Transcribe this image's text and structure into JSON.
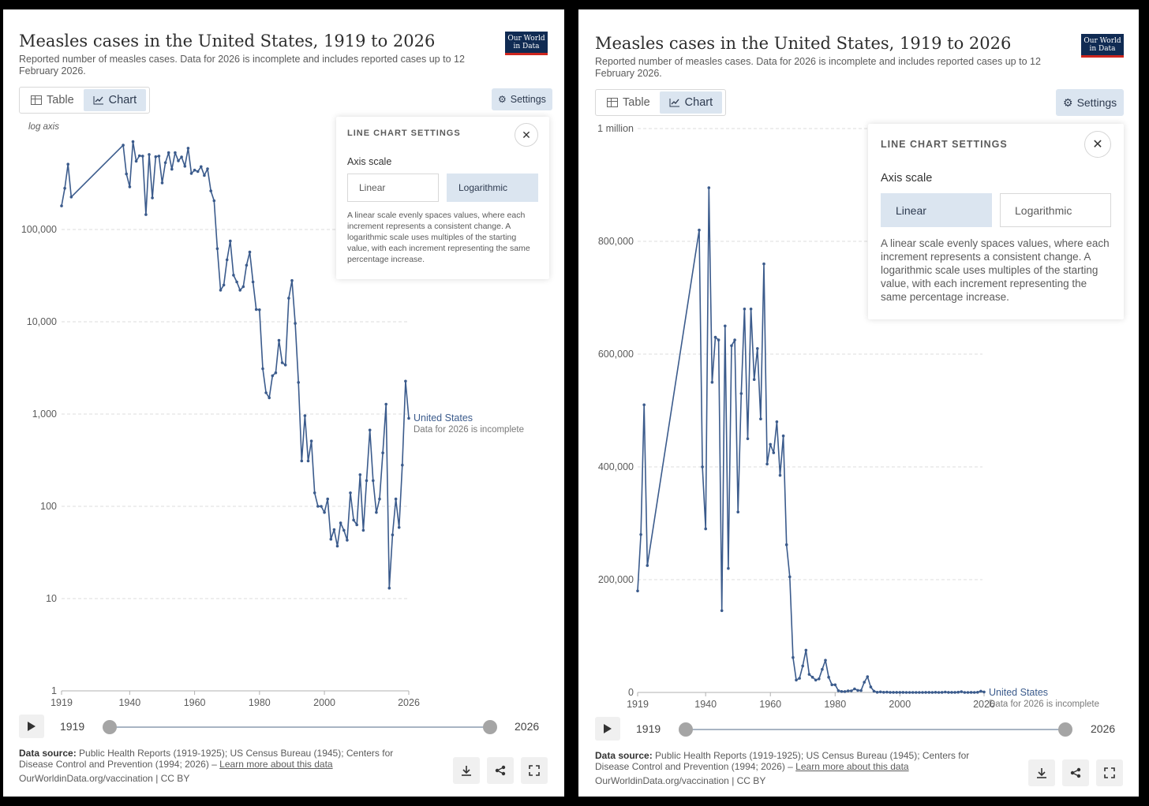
{
  "title": "Measles cases in the United States, 1919 to 2026",
  "subtitle": "Reported number of measles cases. Data for 2026 is incomplete and includes reported cases up to 12 February 2026.",
  "logo": {
    "line1": "Our World",
    "line2": "in Data"
  },
  "tabs": {
    "table": "Table",
    "chart": "Chart"
  },
  "settings_label": "Settings",
  "popup": {
    "title": "LINE CHART SETTINGS",
    "axis_scale_label": "Axis scale",
    "linear": "Linear",
    "logarithmic": "Logarithmic",
    "description": "A linear scale evenly spaces values, where each increment represents a consistent change. A logarithmic scale uses multiples of the starting value, with each increment representing the same percentage increase."
  },
  "log_axis_label": "log axis",
  "series_label": "United States",
  "incomplete_note": "Data for 2026 is incomplete",
  "timeline": {
    "start": "1919",
    "end": "2026"
  },
  "footer": {
    "source_label": "Data source:",
    "source_text": "Public Health Reports (1919-1925); US Census Bureau (1945); Centers for Disease Control and Prevention (1994; 2026) –",
    "learn_more": "Learn more about this data",
    "url": "OurWorldinData.org/vaccination | CC BY"
  },
  "colors": {
    "line": "#3b5b8c",
    "accent": "#dbe5f0",
    "logo_bg": "#102b53",
    "logo_border": "#ce261e"
  },
  "chart_data": [
    {
      "type": "line",
      "panel": "left",
      "scale": "log",
      "title": "Measles cases in the United States, 1919 to 2026",
      "x_ticks": [
        "1919",
        "1940",
        "1960",
        "1980",
        "2000",
        "2026"
      ],
      "y_ticks": [
        {
          "value": 1,
          "label": "1"
        },
        {
          "value": 10,
          "label": "10"
        },
        {
          "value": 100,
          "label": "100"
        },
        {
          "value": 1000,
          "label": "1,000"
        },
        {
          "value": 10000,
          "label": "10,000"
        },
        {
          "value": 100000,
          "label": "100,000"
        }
      ],
      "ylim": [
        1,
        1000000
      ],
      "xlim": [
        1919,
        2026
      ]
    },
    {
      "type": "line",
      "panel": "right",
      "scale": "linear",
      "title": "Measles cases in the United States, 1919 to 2026",
      "x_ticks": [
        "1919",
        "1940",
        "1960",
        "1980",
        "2000",
        "2026"
      ],
      "y_ticks": [
        {
          "value": 0,
          "label": "0"
        },
        {
          "value": 200000,
          "label": "200,000"
        },
        {
          "value": 400000,
          "label": "400,000"
        },
        {
          "value": 600000,
          "label": "600,000"
        },
        {
          "value": 800000,
          "label": "800,000"
        },
        {
          "value": 1000000,
          "label": "1 million"
        }
      ],
      "ylim": [
        0,
        1000000
      ],
      "xlim": [
        1919,
        2026
      ]
    }
  ],
  "series": {
    "name": "United States",
    "x": [
      1919,
      1920,
      1921,
      1922,
      1938,
      1939,
      1940,
      1941,
      1942,
      1943,
      1944,
      1945,
      1946,
      1947,
      1948,
      1949,
      1950,
      1951,
      1952,
      1953,
      1954,
      1955,
      1956,
      1957,
      1958,
      1959,
      1960,
      1961,
      1962,
      1963,
      1964,
      1965,
      1966,
      1967,
      1968,
      1969,
      1970,
      1971,
      1972,
      1973,
      1974,
      1975,
      1976,
      1977,
      1978,
      1979,
      1980,
      1981,
      1982,
      1983,
      1984,
      1985,
      1986,
      1987,
      1988,
      1989,
      1990,
      1991,
      1992,
      1993,
      1994,
      1995,
      1996,
      1997,
      1998,
      1999,
      2000,
      2001,
      2002,
      2003,
      2004,
      2005,
      2006,
      2007,
      2008,
      2009,
      2010,
      2011,
      2012,
      2013,
      2014,
      2015,
      2016,
      2017,
      2018,
      2019,
      2020,
      2021,
      2022,
      2023,
      2024,
      2025,
      2026
    ],
    "values": [
      180000,
      280000,
      510000,
      225000,
      820000,
      400000,
      290000,
      895000,
      550000,
      630000,
      625000,
      145000,
      650000,
      220000,
      615000,
      625000,
      320000,
      530000,
      680000,
      450000,
      680000,
      555000,
      610000,
      485000,
      760000,
      405000,
      440000,
      425000,
      480000,
      385000,
      455000,
      262000,
      205000,
      62000,
      22000,
      25000,
      47000,
      75000,
      32000,
      27000,
      22000,
      24000,
      41000,
      57000,
      27000,
      13600,
      13500,
      3100,
      1700,
      1500,
      2600,
      2800,
      6300,
      3600,
      3400,
      18000,
      28000,
      9600,
      2200,
      310,
      960,
      310,
      510,
      140,
      100,
      100,
      86,
      120,
      44,
      56,
      37,
      66,
      55,
      43,
      140,
      71,
      63,
      220,
      55,
      190,
      670,
      190,
      86,
      120,
      380,
      1280,
      13,
      49,
      120,
      59,
      280,
      2270,
      900
    ]
  }
}
